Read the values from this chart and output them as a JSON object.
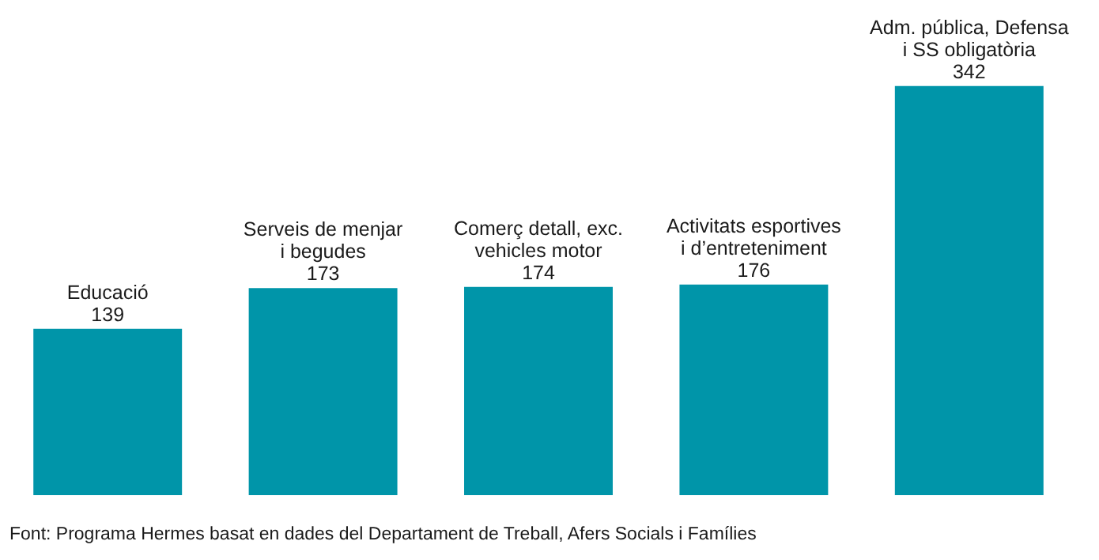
{
  "chart_data": {
    "type": "bar",
    "categories": [
      "Educació",
      "Serveis de menjar\ni begudes",
      "Comerç detall, exc.\nvehicles motor",
      "Activitats esportives\ni d’entreteniment",
      "Adm. pública, Defensa\ni SS obligatòria"
    ],
    "values": [
      139,
      173,
      174,
      176,
      342
    ],
    "color": "#0095a9",
    "data_labels": true,
    "legend": false,
    "annotations": [
      "Font: Programa Hermes basat en dades del Departament de Treball, Afers Socials i Famílies"
    ]
  }
}
